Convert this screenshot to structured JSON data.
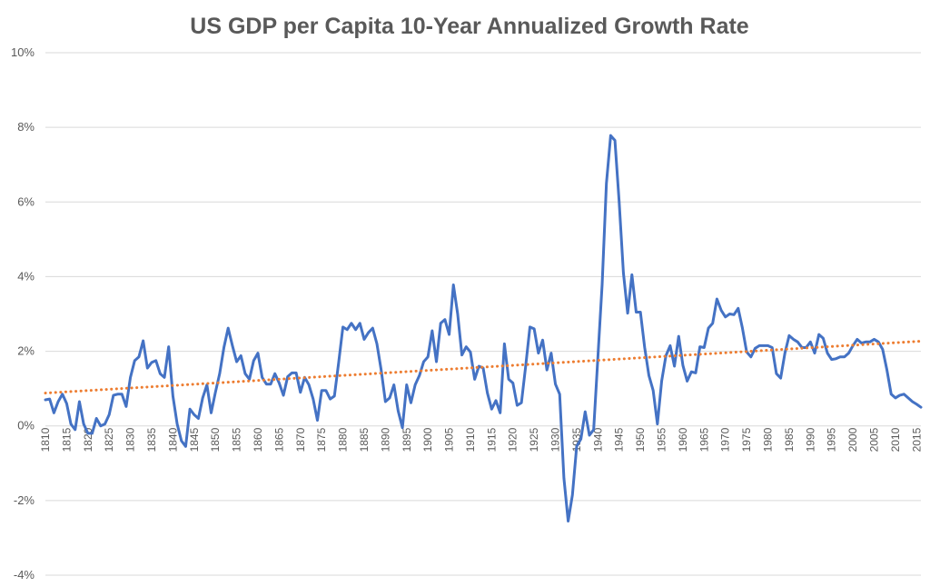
{
  "chart_data": {
    "type": "line",
    "title": "US GDP per Capita 10-Year Annualized Growth Rate",
    "xlabel": "",
    "ylabel": "",
    "ylim": [
      -4,
      10
    ],
    "grid": true,
    "y_ticks": [
      {
        "value": 10,
        "label": "10%"
      },
      {
        "value": 8,
        "label": "8%"
      },
      {
        "value": 6,
        "label": "6%"
      },
      {
        "value": 4,
        "label": "4%"
      },
      {
        "value": 2,
        "label": "2%"
      },
      {
        "value": 0,
        "label": "0%"
      },
      {
        "value": -2,
        "label": "-2%"
      },
      {
        "value": -4,
        "label": "-4%"
      }
    ],
    "x_range": [
      1810,
      2016
    ],
    "x_ticks": [
      1810,
      1815,
      1820,
      1825,
      1830,
      1835,
      1840,
      1845,
      1850,
      1855,
      1860,
      1865,
      1870,
      1875,
      1880,
      1885,
      1890,
      1895,
      1900,
      1905,
      1910,
      1915,
      1920,
      1925,
      1930,
      1935,
      1940,
      1945,
      1950,
      1955,
      1960,
      1965,
      1970,
      1975,
      1980,
      1985,
      1990,
      1995,
      2000,
      2005,
      2010,
      2015
    ],
    "series": [
      {
        "name": "10-Year Annualized Growth Rate",
        "color": "#4472c4",
        "points": [
          [
            1810,
            0.7
          ],
          [
            1811,
            0.72
          ],
          [
            1812,
            0.35
          ],
          [
            1813,
            0.65
          ],
          [
            1814,
            0.85
          ],
          [
            1815,
            0.6
          ],
          [
            1816,
            0.05
          ],
          [
            1817,
            -0.1
          ],
          [
            1818,
            0.65
          ],
          [
            1819,
            0.05
          ],
          [
            1820,
            -0.2
          ],
          [
            1821,
            -0.2
          ],
          [
            1822,
            0.2
          ],
          [
            1823,
            0.0
          ],
          [
            1824,
            0.05
          ],
          [
            1825,
            0.3
          ],
          [
            1826,
            0.82
          ],
          [
            1827,
            0.85
          ],
          [
            1828,
            0.85
          ],
          [
            1829,
            0.52
          ],
          [
            1830,
            1.3
          ],
          [
            1831,
            1.75
          ],
          [
            1832,
            1.85
          ],
          [
            1833,
            2.28
          ],
          [
            1834,
            1.55
          ],
          [
            1835,
            1.7
          ],
          [
            1836,
            1.75
          ],
          [
            1837,
            1.4
          ],
          [
            1838,
            1.3
          ],
          [
            1839,
            2.12
          ],
          [
            1840,
            0.8
          ],
          [
            1841,
            0.05
          ],
          [
            1842,
            -0.4
          ],
          [
            1843,
            -0.55
          ],
          [
            1844,
            0.45
          ],
          [
            1845,
            0.3
          ],
          [
            1846,
            0.2
          ],
          [
            1847,
            0.75
          ],
          [
            1848,
            1.1
          ],
          [
            1849,
            0.35
          ],
          [
            1850,
            0.9
          ],
          [
            1851,
            1.4
          ],
          [
            1852,
            2.1
          ],
          [
            1853,
            2.62
          ],
          [
            1854,
            2.15
          ],
          [
            1855,
            1.72
          ],
          [
            1856,
            1.88
          ],
          [
            1857,
            1.4
          ],
          [
            1858,
            1.25
          ],
          [
            1859,
            1.75
          ],
          [
            1860,
            1.95
          ],
          [
            1861,
            1.3
          ],
          [
            1862,
            1.12
          ],
          [
            1863,
            1.12
          ],
          [
            1864,
            1.4
          ],
          [
            1865,
            1.15
          ],
          [
            1866,
            0.82
          ],
          [
            1867,
            1.32
          ],
          [
            1868,
            1.42
          ],
          [
            1869,
            1.42
          ],
          [
            1870,
            0.9
          ],
          [
            1871,
            1.3
          ],
          [
            1872,
            1.1
          ],
          [
            1873,
            0.72
          ],
          [
            1874,
            0.15
          ],
          [
            1875,
            0.95
          ],
          [
            1876,
            0.95
          ],
          [
            1877,
            0.72
          ],
          [
            1878,
            0.8
          ],
          [
            1879,
            1.7
          ],
          [
            1880,
            2.65
          ],
          [
            1881,
            2.58
          ],
          [
            1882,
            2.75
          ],
          [
            1883,
            2.58
          ],
          [
            1884,
            2.75
          ],
          [
            1885,
            2.32
          ],
          [
            1886,
            2.5
          ],
          [
            1887,
            2.62
          ],
          [
            1888,
            2.2
          ],
          [
            1889,
            1.5
          ],
          [
            1890,
            0.65
          ],
          [
            1891,
            0.75
          ],
          [
            1892,
            1.1
          ],
          [
            1893,
            0.4
          ],
          [
            1894,
            -0.05
          ],
          [
            1895,
            1.1
          ],
          [
            1896,
            0.62
          ],
          [
            1897,
            1.1
          ],
          [
            1898,
            1.35
          ],
          [
            1899,
            1.72
          ],
          [
            1900,
            1.85
          ],
          [
            1901,
            2.55
          ],
          [
            1902,
            1.72
          ],
          [
            1903,
            2.75
          ],
          [
            1904,
            2.85
          ],
          [
            1905,
            2.45
          ],
          [
            1906,
            3.78
          ],
          [
            1907,
            3.0
          ],
          [
            1908,
            1.9
          ],
          [
            1909,
            2.12
          ],
          [
            1910,
            1.98
          ],
          [
            1911,
            1.25
          ],
          [
            1912,
            1.6
          ],
          [
            1913,
            1.55
          ],
          [
            1914,
            0.88
          ],
          [
            1915,
            0.45
          ],
          [
            1916,
            0.68
          ],
          [
            1917,
            0.35
          ],
          [
            1918,
            2.2
          ],
          [
            1919,
            1.25
          ],
          [
            1920,
            1.15
          ],
          [
            1921,
            0.55
          ],
          [
            1922,
            0.62
          ],
          [
            1923,
            1.6
          ],
          [
            1924,
            2.65
          ],
          [
            1925,
            2.6
          ],
          [
            1926,
            1.95
          ],
          [
            1927,
            2.3
          ],
          [
            1928,
            1.5
          ],
          [
            1929,
            1.95
          ],
          [
            1930,
            1.12
          ],
          [
            1931,
            0.85
          ],
          [
            1932,
            -1.4
          ],
          [
            1933,
            -2.55
          ],
          [
            1934,
            -1.85
          ],
          [
            1935,
            -0.55
          ],
          [
            1936,
            -0.35
          ],
          [
            1937,
            0.38
          ],
          [
            1938,
            -0.25
          ],
          [
            1939,
            -0.1
          ],
          [
            1940,
            1.85
          ],
          [
            1941,
            3.8
          ],
          [
            1942,
            6.5
          ],
          [
            1943,
            7.78
          ],
          [
            1944,
            7.65
          ],
          [
            1945,
            6.0
          ],
          [
            1946,
            4.1
          ],
          [
            1947,
            3.02
          ],
          [
            1948,
            4.05
          ],
          [
            1949,
            3.05
          ],
          [
            1950,
            3.05
          ],
          [
            1951,
            2.1
          ],
          [
            1952,
            1.35
          ],
          [
            1953,
            0.95
          ],
          [
            1954,
            0.05
          ],
          [
            1955,
            1.2
          ],
          [
            1956,
            1.88
          ],
          [
            1957,
            2.15
          ],
          [
            1958,
            1.6
          ],
          [
            1959,
            2.4
          ],
          [
            1960,
            1.62
          ],
          [
            1961,
            1.2
          ],
          [
            1962,
            1.45
          ],
          [
            1963,
            1.42
          ],
          [
            1964,
            2.12
          ],
          [
            1965,
            2.1
          ],
          [
            1966,
            2.62
          ],
          [
            1967,
            2.75
          ],
          [
            1968,
            3.4
          ],
          [
            1969,
            3.1
          ],
          [
            1970,
            2.92
          ],
          [
            1971,
            3.0
          ],
          [
            1972,
            2.98
          ],
          [
            1973,
            3.15
          ],
          [
            1974,
            2.62
          ],
          [
            1975,
            1.98
          ],
          [
            1976,
            1.85
          ],
          [
            1977,
            2.08
          ],
          [
            1978,
            2.15
          ],
          [
            1979,
            2.15
          ],
          [
            1980,
            2.15
          ],
          [
            1981,
            2.1
          ],
          [
            1982,
            1.4
          ],
          [
            1983,
            1.28
          ],
          [
            1984,
            1.95
          ],
          [
            1985,
            2.42
          ],
          [
            1986,
            2.32
          ],
          [
            1987,
            2.25
          ],
          [
            1988,
            2.1
          ],
          [
            1989,
            2.1
          ],
          [
            1990,
            2.25
          ],
          [
            1991,
            1.95
          ],
          [
            1992,
            2.45
          ],
          [
            1993,
            2.35
          ],
          [
            1994,
            1.95
          ],
          [
            1995,
            1.78
          ],
          [
            1996,
            1.8
          ],
          [
            1997,
            1.85
          ],
          [
            1998,
            1.85
          ],
          [
            1999,
            1.95
          ],
          [
            2000,
            2.15
          ],
          [
            2001,
            2.32
          ],
          [
            2002,
            2.22
          ],
          [
            2003,
            2.25
          ],
          [
            2004,
            2.25
          ],
          [
            2005,
            2.32
          ],
          [
            2006,
            2.25
          ],
          [
            2007,
            2.05
          ],
          [
            2008,
            1.5
          ],
          [
            2009,
            0.85
          ],
          [
            2010,
            0.75
          ],
          [
            2011,
            0.82
          ],
          [
            2012,
            0.85
          ],
          [
            2013,
            0.75
          ],
          [
            2014,
            0.65
          ],
          [
            2015,
            0.58
          ],
          [
            2016,
            0.5
          ]
        ]
      },
      {
        "name": "Linear Trend",
        "color": "#ed7d31",
        "style": "dotted",
        "points": [
          [
            1810,
            0.88
          ],
          [
            2016,
            2.27
          ]
        ]
      }
    ]
  }
}
